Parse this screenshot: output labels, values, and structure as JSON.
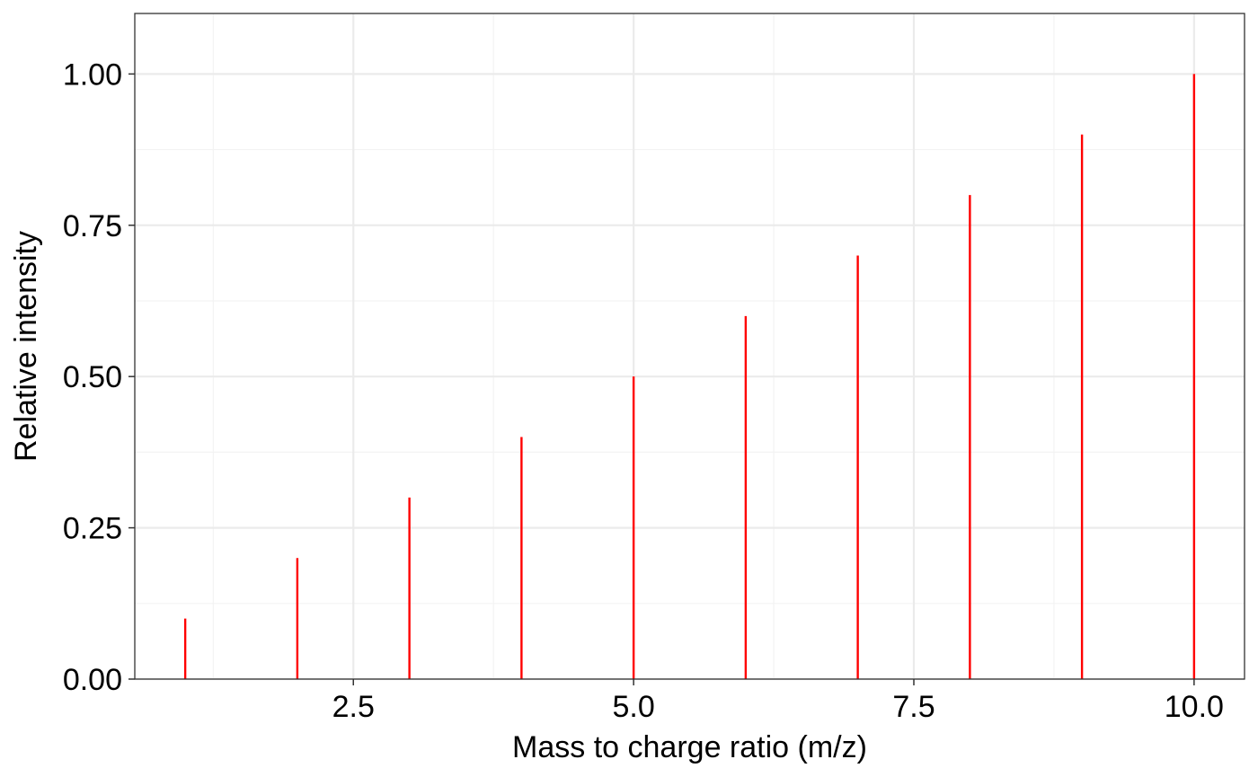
{
  "chart_data": {
    "type": "bar",
    "geom": "stick",
    "title": "",
    "xlabel": "Mass to charge ratio (m/z)",
    "ylabel": "Relative intensity",
    "x": [
      1,
      2,
      3,
      4,
      5,
      6,
      7,
      8,
      9,
      10
    ],
    "y": [
      0.1,
      0.2,
      0.3,
      0.4,
      0.5,
      0.6,
      0.7,
      0.8,
      0.9,
      1.0
    ],
    "xlim": [
      0.55,
      10.45
    ],
    "ylim": [
      0,
      1.1
    ],
    "x_ticks": [
      2.5,
      5.0,
      7.5,
      10.0
    ],
    "x_tick_labels": [
      "2.5",
      "5.0",
      "7.5",
      "10.0"
    ],
    "y_ticks": [
      0,
      0.25,
      0.5,
      0.75,
      1.0
    ],
    "y_tick_labels": [
      "0.00",
      "0.25",
      "0.50",
      "0.75",
      "1.00"
    ],
    "x_minor_ticks": [
      1.25,
      3.75,
      6.25,
      8.75
    ],
    "y_minor_ticks": [
      0.125,
      0.375,
      0.625,
      0.875
    ],
    "grid": true,
    "legend": "none",
    "colors": {
      "series": "#ff0000",
      "grid_major": "#ebebeb",
      "grid_minor": "#f3f3f3",
      "panel_border": "#333333",
      "text": "#000000"
    }
  }
}
